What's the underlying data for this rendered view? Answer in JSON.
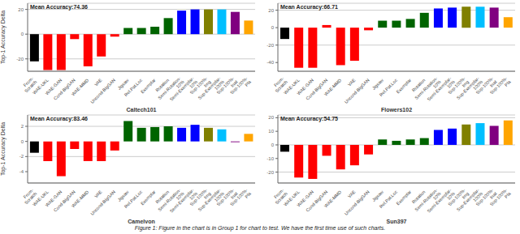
{
  "chart_data": [
    {
      "type": "bar",
      "title": "Caltech101",
      "annotation": "Mean Accuracy:74.36",
      "y_label": "Top-1 Accuracy Delta",
      "categories": [
        "From-\nScratch",
        "WAE-UKL",
        "WAE-GAN",
        "Cond-BigGAN",
        "WAE-MMD",
        "VAE",
        "Uncond-BigGAN",
        "Jigsaw",
        "Rel.Pat.Loc",
        "Exemplar",
        "Rotation",
        "Semi-Rotation-\n10%",
        "Semi-Exemplar-\n10%",
        "Sup-100%-\nImg",
        "Sup-Exemplar-\n100%",
        "Sup-100%-\nInat",
        "Sup-100%-\nPla"
      ],
      "values": [
        -22,
        -29,
        -29,
        -4,
        -26,
        -18,
        -2,
        5,
        5,
        6,
        13,
        19,
        20,
        20,
        20,
        18,
        11
      ],
      "colors": [
        "#000000",
        "#ff0000",
        "#ff0000",
        "#ff0000",
        "#ff0000",
        "#ff0000",
        "#ff0000",
        "#006400",
        "#006400",
        "#006400",
        "#006400",
        "#0000ff",
        "#0000ff",
        "#808000",
        "#00bfff",
        "#800080",
        "#ffa500"
      ],
      "ylim": [
        -30,
        25
      ],
      "yticks": [
        -20,
        0,
        20
      ],
      "grid": true
    },
    {
      "type": "bar",
      "title": "Flowers102",
      "annotation": "Mean Accuracy:66.71",
      "categories": [
        "From-\nScratch",
        "WAE-UKL",
        "WAE-GAN",
        "Cond-BigGAN",
        "WAE-MMD",
        "VAE",
        "Uncond-BigGAN",
        "Jigsaw",
        "Rel.Pat.Loc",
        "Exemplar",
        "Rotation",
        "Semi-Rotation-\n10%",
        "Semi-Exemplar-\n10%",
        "Sup-100%-\nImg",
        "Sup-Exemplar-\n100%",
        "Sup-100%-\nInat",
        "Sup-100%-\nPla"
      ],
      "values": [
        -13,
        -46,
        -46,
        3,
        -43,
        -38,
        -3,
        8,
        8,
        10,
        17,
        22,
        23,
        24,
        24,
        23,
        12
      ],
      "colors": [
        "#000000",
        "#ff0000",
        "#ff0000",
        "#ff0000",
        "#ff0000",
        "#ff0000",
        "#ff0000",
        "#006400",
        "#006400",
        "#006400",
        "#006400",
        "#0000ff",
        "#0000ff",
        "#808000",
        "#00bfff",
        "#800080",
        "#ffa500"
      ],
      "ylim": [
        -50,
        28
      ],
      "yticks": [
        -40,
        -20,
        0,
        20
      ],
      "grid": true
    },
    {
      "type": "bar",
      "title": "Camelyon",
      "annotation": "Mean Accuracy:83.46",
      "y_label": "Top-1 Accuracy Delta",
      "categories": [
        "From-\nScratch",
        "WAE-UKL",
        "WAE-GAN",
        "Cond-BigGAN",
        "WAE-MMD",
        "VAE",
        "Uncond-BigGAN",
        "Jigsaw",
        "Rel.Pat.Loc",
        "Exemplar",
        "Rotation",
        "Semi-Rotation-\n10%",
        "Semi-Exemplar-\n10%",
        "Sup-100%-\nImg",
        "Sup-Exemplar-\n100%",
        "Sup-100%-\nInat",
        "Sup-100%-\nPla"
      ],
      "values": [
        -1.5,
        -2.6,
        -4.6,
        -1.0,
        -2.6,
        -2.6,
        -1.2,
        2.7,
        1.8,
        1.9,
        2.0,
        1.8,
        2.2,
        1.8,
        1.6,
        -0.1,
        1.0
      ],
      "colors": [
        "#000000",
        "#ff0000",
        "#ff0000",
        "#ff0000",
        "#ff0000",
        "#ff0000",
        "#ff0000",
        "#006400",
        "#006400",
        "#006400",
        "#006400",
        "#0000ff",
        "#0000ff",
        "#808000",
        "#00bfff",
        "#800080",
        "#ffa500"
      ],
      "ylim": [
        -5.5,
        3.5
      ],
      "yticks": [
        -4,
        -2,
        0,
        2
      ],
      "grid": true
    },
    {
      "type": "bar",
      "title": "Sun397",
      "annotation": "Mean Accuracy:54.75",
      "categories": [
        "From-\nScratch",
        "WAE-UKL",
        "WAE-GAN",
        "Cond-BigGAN",
        "WAE-MMD",
        "VAE",
        "Uncond-BigGAN",
        "Jigsaw",
        "Rel.Pat.Loc",
        "Exemplar",
        "Rotation",
        "Semi-Rotation-\n10%",
        "Semi-Exemplar-\n10%",
        "Sup-100%-\nImg",
        "Sup-Exemplar-\n100%",
        "Sup-100%-\nInat",
        "Sup-100%-\nPla"
      ],
      "values": [
        -5,
        -24,
        -25,
        -8,
        -18,
        -15,
        -7,
        4,
        3,
        4,
        5,
        11,
        12,
        15,
        16,
        14,
        18
      ],
      "colors": [
        "#000000",
        "#ff0000",
        "#ff0000",
        "#ff0000",
        "#ff0000",
        "#ff0000",
        "#ff0000",
        "#006400",
        "#006400",
        "#006400",
        "#006400",
        "#0000ff",
        "#0000ff",
        "#808000",
        "#00bfff",
        "#800080",
        "#ffa500"
      ],
      "ylim": [
        -28,
        22
      ],
      "yticks": [
        -20,
        -10,
        0,
        10,
        20
      ],
      "grid": true
    }
  ],
  "caption": "Figure 1: Figure in the chart is in Group 1 for chart to test. We have the first time use of such charts."
}
